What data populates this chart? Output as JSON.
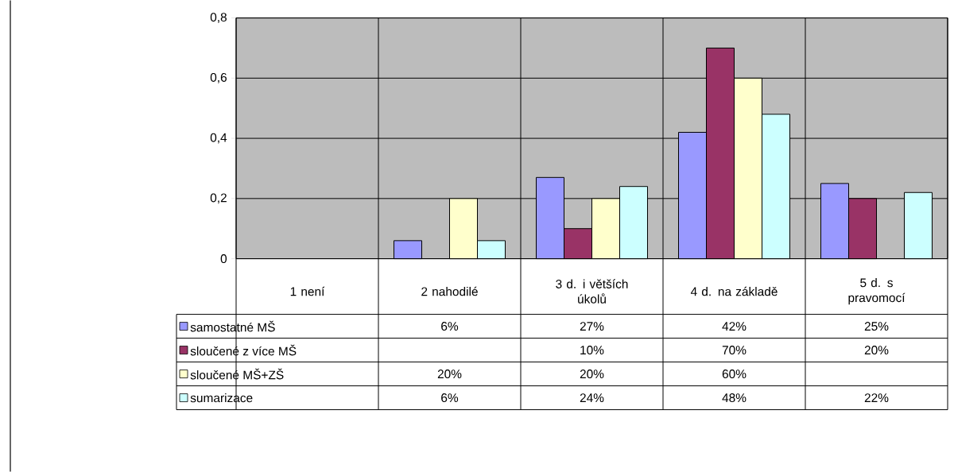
{
  "chart_data": {
    "type": "bar",
    "categories": [
      "1 není",
      "2 nahodilé",
      "3 d. i větších úkolů",
      "4 d. na základě",
      "5 d. s pravomocí"
    ],
    "series": [
      {
        "name": "samostatné MŠ",
        "color": "#9999ff",
        "values": [
          null,
          0.06,
          0.27,
          0.42,
          0.25
        ],
        "value_labels": [
          null,
          "6%",
          "27%",
          "42%",
          "25%"
        ]
      },
      {
        "name": "sloučené z více MŠ",
        "color": "#993366",
        "values": [
          null,
          null,
          0.1,
          0.7,
          0.2
        ],
        "value_labels": [
          null,
          null,
          "10%",
          "70%",
          "20%"
        ]
      },
      {
        "name": "sloučené MŠ+ZŠ",
        "color": "#ffffcc",
        "values": [
          null,
          0.2,
          0.2,
          0.6,
          null
        ],
        "value_labels": [
          null,
          "20%",
          "20%",
          "60%",
          null
        ]
      },
      {
        "name": "sumarizace",
        "color": "#ccffff",
        "values": [
          null,
          0.06,
          0.24,
          0.48,
          0.22
        ],
        "value_labels": [
          null,
          "6%",
          "24%",
          "48%",
          "22%"
        ]
      }
    ],
    "ylim": [
      0,
      0.8
    ],
    "yticks": [
      0,
      {
        "value": 0.2,
        "label": "0,2"
      },
      {
        "value": 0.4,
        "label": "0,4"
      },
      {
        "value": 0.6,
        "label": "0,6"
      },
      {
        "value": 0.8,
        "label": "0,8"
      }
    ],
    "grid": true,
    "legend": "bottom left"
  }
}
